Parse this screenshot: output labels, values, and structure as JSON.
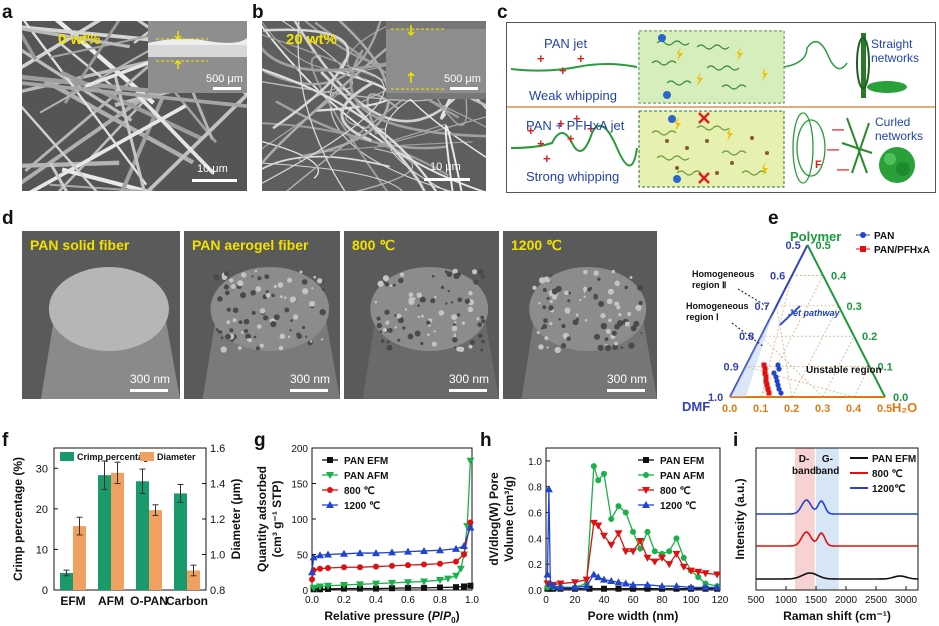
{
  "panels": {
    "a": {
      "label": "a",
      "tag": "0 wt%",
      "inset_scale": "500 μm",
      "scale": "10 μm"
    },
    "b": {
      "label": "b",
      "tag": "20 wt%",
      "inset_scale": "500 μm",
      "scale": "10 μm"
    },
    "c": {
      "label": "c",
      "top_jet": "PAN jet",
      "top_whip": "Weak whipping",
      "top_result": "Straight networks",
      "bottom_jet": "PAN + PFHxA jet",
      "bottom_whip": "Strong whipping",
      "bottom_result": "Curled networks",
      "force": "F"
    },
    "d": {
      "label": "d",
      "images": [
        {
          "title": "PAN solid fiber",
          "scale": "300 nm"
        },
        {
          "title": "PAN aerogel fiber",
          "scale": "300 nm"
        },
        {
          "title": "800 ℃",
          "scale": "300 nm"
        },
        {
          "title": "1200 ℃",
          "scale": "300 nm"
        }
      ]
    },
    "e": {
      "label": "e",
      "top_vertex": "Polymer",
      "left_vertex": "DMF",
      "right_vertex": "H₂O",
      "legend": [
        "PAN",
        "PAN/PFHxA"
      ],
      "region2": "Homogeneous region Ⅱ",
      "region1": "Homogeneous region Ⅰ",
      "jet_pathway": "Jet pathway",
      "unstable": "Unstable region",
      "left_ticks": [
        "1.0",
        "0.9",
        "0.8",
        "0.7",
        "0.6",
        "0.5"
      ],
      "right_ticks": [
        "0.5",
        "0.4",
        "0.3",
        "0.2",
        "0.1",
        "0.0"
      ],
      "bottom_ticks": [
        "0.0",
        "0.1",
        "0.2",
        "0.3",
        "0.4",
        "0.5"
      ],
      "colors": {
        "left": "#3344bb",
        "right": "#1a9a3a",
        "bottom": "#e07a10"
      }
    },
    "f": {
      "label": "f",
      "i": 0
    },
    "g": {
      "label": "g",
      "i": 1
    },
    "h": {
      "label": "h",
      "i": 2
    },
    "i": {
      "label": "i",
      "i": 3
    }
  },
  "chart_data": [
    {
      "type": "bar",
      "title": "",
      "categories": [
        "EFM",
        "AFM",
        "O-PAN",
        "Carbon"
      ],
      "series": [
        {
          "name": "Crimp percentage",
          "axis": "left",
          "color": "#1a9a6a",
          "values": [
            4.2,
            28.3,
            26.8,
            23.8
          ],
          "errors": [
            0.7,
            3.5,
            3.0,
            2.2
          ]
        },
        {
          "name": "Diameter",
          "axis": "right",
          "color": "#f0a060",
          "values": [
            1.16,
            1.46,
            1.25,
            0.91
          ],
          "errors": [
            0.05,
            0.06,
            0.03,
            0.03
          ]
        }
      ],
      "ylabel": "Crimp percentage (%)",
      "ylim": [
        0,
        35
      ],
      "yticks": [
        "0",
        "10",
        "20",
        "30"
      ],
      "y2label": "Diameter (μm)",
      "y2lim": [
        0.8,
        1.6
      ],
      "y2ticks": [
        "0.8",
        "1.0",
        "1.2",
        "1.4",
        "1.6"
      ]
    },
    {
      "type": "line",
      "xlabel": "Relative pressure (P/P0)",
      "ylabel_line1": "Quantity adsorbed",
      "ylabel_line2": "(cm³ g⁻¹ STP)",
      "xlim": [
        0,
        1.0
      ],
      "ylim": [
        0,
        200
      ],
      "xticks": [
        "0.0",
        "0.2",
        "0.4",
        "0.6",
        "0.8",
        "1.0"
      ],
      "yticks": [
        "0",
        "50",
        "100",
        "150",
        "200"
      ],
      "series": [
        {
          "name": "PAN EFM",
          "color": "#111111",
          "marker": "square",
          "x": [
            0.01,
            0.05,
            0.1,
            0.2,
            0.3,
            0.4,
            0.5,
            0.6,
            0.7,
            0.8,
            0.9,
            0.95,
            0.99
          ],
          "y": [
            1,
            1,
            1.5,
            2,
            2,
            2,
            2.5,
            3,
            3,
            3.5,
            4,
            5,
            6
          ]
        },
        {
          "name": "PAN AFM",
          "color": "#1ab04a",
          "marker": "tri-down",
          "x": [
            0.01,
            0.05,
            0.1,
            0.2,
            0.3,
            0.4,
            0.5,
            0.6,
            0.7,
            0.8,
            0.85,
            0.9,
            0.93,
            0.95,
            0.97,
            0.99
          ],
          "y": [
            3,
            5,
            6,
            7,
            8,
            9,
            10,
            11,
            12,
            14,
            16,
            20,
            30,
            50,
            90,
            182
          ]
        },
        {
          "name": "800 ℃",
          "color": "#dd1111",
          "marker": "circle",
          "x": [
            0.0,
            0.01,
            0.05,
            0.1,
            0.2,
            0.3,
            0.4,
            0.5,
            0.6,
            0.7,
            0.8,
            0.9,
            0.95,
            0.99
          ],
          "y": [
            15,
            28,
            30,
            31,
            32,
            32,
            33,
            34,
            35,
            36,
            37,
            40,
            50,
            95
          ]
        },
        {
          "name": "1200 ℃",
          "color": "#2244cc",
          "marker": "tri-up",
          "x": [
            0.0,
            0.01,
            0.05,
            0.1,
            0.2,
            0.3,
            0.4,
            0.5,
            0.6,
            0.7,
            0.8,
            0.9,
            0.95,
            0.99
          ],
          "y": [
            25,
            46,
            49,
            50,
            51,
            52,
            52,
            53,
            54,
            55,
            56,
            58,
            62,
            88
          ]
        }
      ]
    },
    {
      "type": "line",
      "xlabel": "Pore width (nm)",
      "ylabel_line1": "dV/dlog(W) Pore",
      "ylabel_line2": "Volume (cm³/g)",
      "xlim": [
        0,
        120
      ],
      "ylim": [
        0,
        1.1
      ],
      "xticks": [
        "0",
        "20",
        "40",
        "60",
        "80",
        "100",
        "120"
      ],
      "yticks": [
        "0.0",
        "0.2",
        "0.4",
        "0.6",
        "0.8",
        "1.0"
      ],
      "series": [
        {
          "name": "PAN EFM",
          "color": "#111111",
          "marker": "square",
          "x": [
            1,
            3,
            5,
            10,
            20,
            30,
            40,
            50,
            60,
            70,
            80,
            90,
            100,
            110,
            118
          ],
          "y": [
            0.01,
            0.01,
            0.01,
            0.01,
            0.01,
            0.01,
            0.01,
            0.01,
            0.01,
            0.01,
            0.01,
            0.01,
            0.01,
            0.01,
            0.01
          ]
        },
        {
          "name": "PAN AFM",
          "color": "#1ab04a",
          "marker": "circle",
          "x": [
            1,
            5,
            10,
            20,
            28,
            33,
            36,
            40,
            45,
            50,
            55,
            60,
            65,
            70,
            75,
            80,
            85,
            90,
            95,
            100,
            105,
            110,
            118
          ],
          "y": [
            0.02,
            0.02,
            0.02,
            0.02,
            0.05,
            0.96,
            0.85,
            0.9,
            0.55,
            0.65,
            0.6,
            0.45,
            0.32,
            0.45,
            0.3,
            0.28,
            0.3,
            0.4,
            0.25,
            0.15,
            0.1,
            0.05,
            0.03
          ]
        },
        {
          "name": "800 ℃",
          "color": "#dd1111",
          "marker": "tri-down",
          "x": [
            1,
            5,
            10,
            20,
            28,
            33,
            36,
            40,
            45,
            50,
            55,
            60,
            65,
            70,
            75,
            80,
            85,
            90,
            95,
            100,
            105,
            110,
            118
          ],
          "y": [
            0.05,
            0.04,
            0.05,
            0.06,
            0.08,
            0.52,
            0.5,
            0.42,
            0.35,
            0.44,
            0.3,
            0.3,
            0.38,
            0.25,
            0.22,
            0.25,
            0.2,
            0.28,
            0.18,
            0.15,
            0.14,
            0.13,
            0.12
          ]
        },
        {
          "name": "1200 ℃",
          "color": "#2244cc",
          "marker": "tri-up",
          "x": [
            1,
            2,
            3,
            5,
            10,
            20,
            28,
            33,
            36,
            40,
            45,
            50,
            55,
            60,
            70,
            80,
            90,
            100,
            110,
            118
          ],
          "y": [
            0.12,
            0.78,
            0.05,
            0.03,
            0.02,
            0.02,
            0.03,
            0.12,
            0.1,
            0.08,
            0.07,
            0.06,
            0.05,
            0.04,
            0.04,
            0.03,
            0.03,
            0.02,
            0.02,
            0.02
          ]
        }
      ]
    },
    {
      "type": "line",
      "xlabel": "Raman shift (cm⁻¹)",
      "ylabel": "Intensity (a.u.)",
      "xlim": [
        500,
        3200
      ],
      "xticks": [
        "500",
        "1000",
        "1500",
        "2000",
        "2500",
        "3000"
      ],
      "bands": [
        {
          "name": "D-band",
          "from": 1150,
          "to": 1480,
          "color": "#f6d2d2"
        },
        {
          "name": "G-band",
          "from": 1500,
          "to": 1880,
          "color": "#d6e6f6"
        }
      ],
      "band_labels": [
        "D-",
        "band",
        "G-",
        "band"
      ],
      "series": [
        {
          "name": "PAN EFM",
          "color": "#111111",
          "offset": 0.0
        },
        {
          "name": "800 ℃",
          "color": "#dd1111",
          "offset": 1.0
        },
        {
          "name": "1200℃",
          "color": "#2244cc",
          "offset": 2.0
        }
      ]
    }
  ]
}
